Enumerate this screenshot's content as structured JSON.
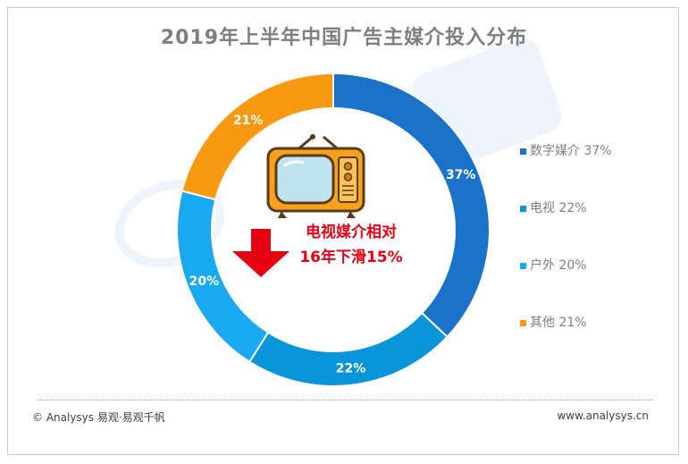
{
  "chart_data": {
    "type": "pie",
    "title": "2019年上半年中国广告主媒介投入分布",
    "donut": true,
    "categories": [
      "数字媒介",
      "电视",
      "户外",
      "其他"
    ],
    "values": [
      37,
      22,
      20,
      21
    ],
    "data_labels": [
      "37%",
      "22%",
      "20%",
      "21%"
    ],
    "legend_labels": [
      "数字媒介 37%",
      "电视 22%",
      "户外 20%",
      "其他 21%"
    ],
    "colors": [
      "#1a73c9",
      "#0995d9",
      "#19a9f0",
      "#f79a12"
    ],
    "legend_position": "right",
    "annotation": {
      "line1": "电视媒介相对",
      "line2": "16年下滑15%"
    }
  },
  "icons": {
    "tv": "tv-icon",
    "down_arrow": "down-arrow-icon"
  },
  "footer": {
    "copyright": "© Analysys 易观·易观千帆",
    "website": "www.analysys.cn"
  }
}
